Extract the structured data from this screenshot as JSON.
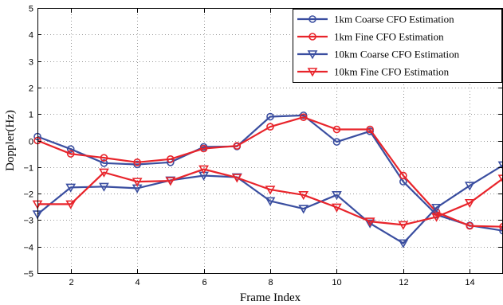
{
  "chart_data": {
    "type": "line",
    "xlabel": "Frame Index",
    "ylabel": "Doppler(Hz)",
    "xlim": [
      1,
      15
    ],
    "ylim": [
      -5,
      5
    ],
    "x_ticks": [
      2,
      4,
      6,
      8,
      10,
      12,
      14
    ],
    "y_ticks": [
      -5,
      -4,
      -3,
      -2,
      -1,
      0,
      1,
      2,
      3,
      4,
      5
    ],
    "grid": true,
    "grid_style": "dotted",
    "legend_position": "top-right",
    "x": [
      1,
      2,
      3,
      4,
      5,
      6,
      7,
      8,
      9,
      10,
      11,
      12,
      13,
      14,
      15
    ],
    "series": [
      {
        "name": "1km Coarse CFO Estimation",
        "color": "#3a4ea0",
        "marker": "circle",
        "values": [
          0.15,
          -0.32,
          -0.85,
          -0.9,
          -0.82,
          -0.24,
          -0.22,
          0.9,
          0.95,
          -0.05,
          0.35,
          -1.55,
          -2.8,
          -3.2,
          -3.4
        ]
      },
      {
        "name": "1km Fine CFO Estimation",
        "color": "#e8242b",
        "marker": "circle",
        "values": [
          0.0,
          -0.5,
          -0.65,
          -0.82,
          -0.7,
          -0.3,
          -0.2,
          0.52,
          0.88,
          0.42,
          0.42,
          -1.32,
          -2.7,
          -3.22,
          -3.25
        ]
      },
      {
        "name": "10km Coarse CFO Estimation",
        "color": "#3a4ea0",
        "marker": "triangle-down",
        "values": [
          -2.78,
          -1.77,
          -1.74,
          -1.8,
          -1.5,
          -1.32,
          -1.38,
          -2.28,
          -2.57,
          -2.05,
          -3.12,
          -3.87,
          -2.53,
          -1.7,
          -0.93
        ]
      },
      {
        "name": "10km Fine CFO Estimation",
        "color": "#e8242b",
        "marker": "triangle-down",
        "values": [
          -2.4,
          -2.4,
          -1.2,
          -1.55,
          -1.52,
          -1.08,
          -1.4,
          -1.85,
          -2.05,
          -2.52,
          -3.05,
          -3.18,
          -2.88,
          -2.35,
          -1.43
        ]
      }
    ]
  }
}
